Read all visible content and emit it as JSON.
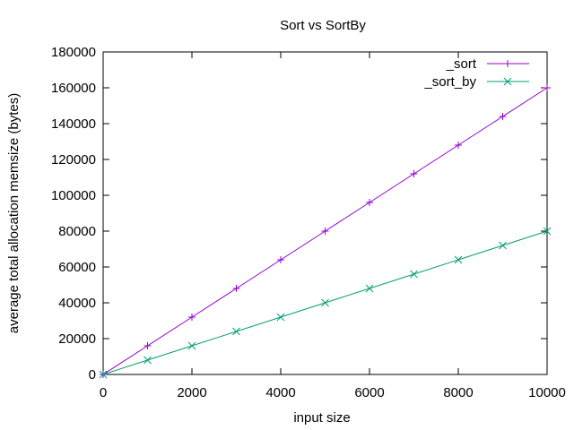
{
  "chart_data": {
    "type": "line",
    "title": "Sort vs SortBy",
    "xlabel": "input size",
    "ylabel": "average total allocation memsize (bytes)",
    "xlim": [
      0,
      10000
    ],
    "ylim": [
      0,
      180000
    ],
    "x_ticks": [
      0,
      2000,
      4000,
      6000,
      8000,
      10000
    ],
    "y_ticks": [
      0,
      20000,
      40000,
      60000,
      80000,
      100000,
      120000,
      140000,
      160000,
      180000
    ],
    "grid": false,
    "legend_position": "top-right",
    "x": [
      0,
      1000,
      2000,
      3000,
      4000,
      5000,
      6000,
      7000,
      8000,
      9000,
      10000
    ],
    "series": [
      {
        "name": "_sort",
        "color": "#9400d3",
        "marker": "plus",
        "values": [
          0,
          16000,
          32000,
          48000,
          64000,
          80000,
          96000,
          112000,
          128000,
          144000,
          160000
        ]
      },
      {
        "name": "_sort_by",
        "color": "#009e73",
        "marker": "cross",
        "values": [
          0,
          8000,
          16000,
          24000,
          32000,
          40000,
          48000,
          56000,
          64000,
          72000,
          80000
        ]
      }
    ]
  }
}
